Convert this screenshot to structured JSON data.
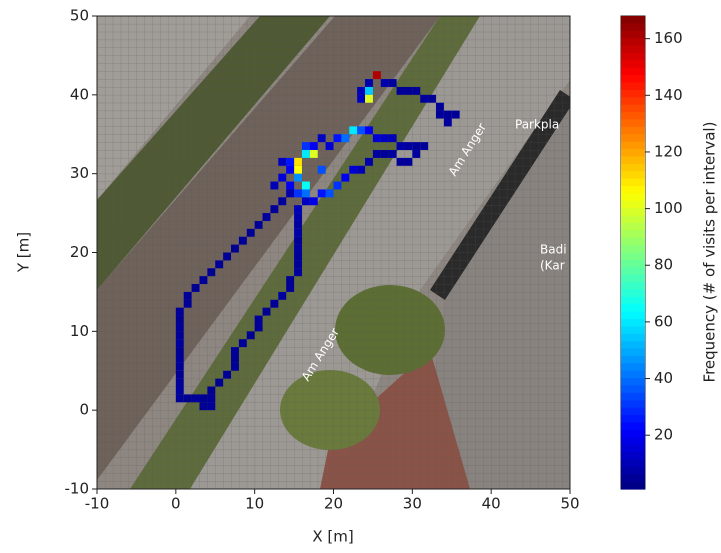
{
  "chart_data": {
    "type": "heatmap",
    "xlabel": "X [m]",
    "ylabel": "Y [m]",
    "xlim": [
      -10,
      50
    ],
    "ylim": [
      -10,
      50
    ],
    "xticks": [
      -10,
      0,
      10,
      20,
      30,
      40,
      50
    ],
    "yticks": [
      -10,
      0,
      10,
      20,
      30,
      40,
      50
    ],
    "colormap": "jet",
    "colorbar": {
      "label": "Frequency (# of visits per interval)",
      "lim": [
        1,
        168
      ],
      "ticks": [
        20,
        40,
        60,
        80,
        100,
        120,
        140,
        160
      ]
    },
    "map_labels": [
      "Am Anger",
      "Am Anger",
      "Parkpla",
      "Badi",
      "(Kar"
    ],
    "cells": {
      "x": [
        0,
        0,
        0,
        0,
        0,
        0,
        0,
        0,
        0,
        0,
        0,
        0,
        1,
        1,
        2,
        3,
        4,
        5,
        6,
        7,
        8,
        9,
        10,
        11,
        12,
        13,
        14,
        1,
        2,
        3,
        3,
        4,
        4,
        4,
        5,
        6,
        7,
        7,
        7,
        8,
        9,
        10,
        10,
        11,
        12,
        13,
        14,
        14,
        15,
        15,
        15,
        15,
        15,
        15,
        15,
        15,
        15,
        16,
        16,
        17,
        18,
        19,
        20,
        21,
        22,
        23,
        24,
        25,
        26,
        27,
        28,
        29,
        30,
        31,
        30,
        29,
        28,
        27,
        26,
        25,
        24,
        23,
        22,
        21,
        20,
        19,
        18,
        17,
        16,
        15,
        15,
        15,
        15,
        16,
        17,
        16,
        14,
        13,
        12,
        13,
        14,
        23,
        23,
        24,
        24,
        25,
        24,
        26,
        27,
        28,
        29,
        30,
        31,
        32,
        33,
        33,
        34,
        35,
        34,
        14,
        18
      ],
      "y": [
        1,
        2,
        3,
        4,
        5,
        6,
        7,
        8,
        9,
        10,
        11,
        12,
        13,
        14,
        15,
        16,
        17,
        18,
        19,
        20,
        21,
        22,
        23,
        24,
        25,
        26,
        27,
        1,
        1,
        1,
        0,
        0,
        1,
        2,
        3,
        4,
        5,
        6,
        7,
        8,
        9,
        10,
        11,
        12,
        13,
        14,
        15,
        16,
        17,
        18,
        19,
        20,
        21,
        22,
        23,
        24,
        25,
        26,
        33,
        33,
        34,
        33,
        34,
        34,
        35,
        35,
        35,
        34,
        34,
        34,
        33,
        33,
        33,
        33,
        32,
        31,
        31,
        32,
        32,
        32,
        31,
        30,
        30,
        29,
        28,
        27,
        27,
        26,
        27,
        27,
        29,
        30,
        31,
        32,
        32,
        28,
        30,
        29,
        28,
        31,
        31,
        39,
        40,
        41,
        40,
        42,
        39,
        41,
        41,
        40,
        40,
        40,
        39,
        39,
        38,
        37,
        37,
        37,
        36,
        28,
        30
      ],
      "values": [
        5,
        6,
        5,
        4,
        5,
        5,
        4,
        6,
        5,
        5,
        4,
        5,
        5,
        5,
        4,
        5,
        4,
        5,
        5,
        4,
        5,
        4,
        5,
        6,
        5,
        6,
        8,
        4,
        5,
        4,
        4,
        5,
        5,
        4,
        4,
        5,
        5,
        4,
        5,
        5,
        4,
        5,
        5,
        4,
        5,
        6,
        5,
        4,
        6,
        5,
        5,
        6,
        5,
        7,
        6,
        8,
        10,
        12,
        30,
        20,
        12,
        15,
        25,
        40,
        60,
        35,
        20,
        15,
        12,
        10,
        8,
        6,
        5,
        5,
        6,
        5,
        5,
        6,
        5,
        6,
        8,
        10,
        15,
        20,
        30,
        35,
        25,
        18,
        40,
        30,
        45,
        105,
        110,
        60,
        100,
        65,
        20,
        15,
        10,
        12,
        25,
        12,
        10,
        8,
        55,
        160,
        100,
        8,
        6,
        5,
        5,
        5,
        6,
        5,
        5,
        5,
        5,
        5,
        6,
        20,
        35
      ]
    }
  }
}
